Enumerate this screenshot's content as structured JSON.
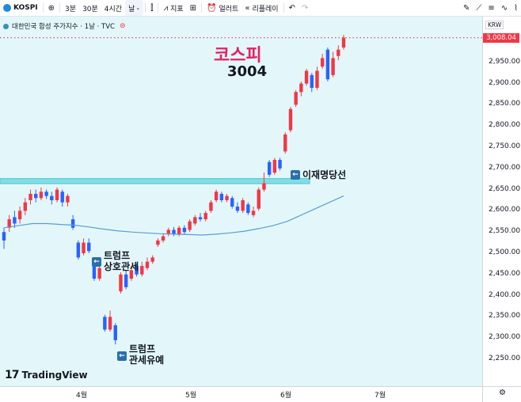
{
  "toolbar": {
    "symbol": "KOSPI",
    "intervals": [
      "3분",
      "30분",
      "4시간",
      "날"
    ],
    "active_interval": "날",
    "indicators_label": "지표",
    "alert_label": "얼러트",
    "replay_label": "리플레이"
  },
  "legend": {
    "name": "대한민국 합성 주가지수 · 1날 · TVC"
  },
  "price_axis": {
    "currency": "KRW",
    "current_price": "3,008.04",
    "ticks": [
      "2,950.00",
      "2,900.00",
      "2,850.00",
      "2,800.00",
      "2,750.00",
      "2,700.00",
      "2,650.00",
      "2,600.00",
      "2,550.00",
      "2,500.00",
      "2,450.00",
      "2,400.00",
      "2,350.00",
      "2,300.00",
      "2,250.00"
    ]
  },
  "time_axis": {
    "ticks": [
      "4월",
      "5월",
      "6월",
      "7월"
    ]
  },
  "branding": "TradingView",
  "annotations": {
    "title": "코스피",
    "value": "3004",
    "election": "이재명당선",
    "tariff_lines": [
      "트럼프",
      "상호관세"
    ],
    "pause_lines": [
      "트럼프",
      "관세유예"
    ]
  },
  "colors": {
    "up": "#f23645",
    "down": "#2962ff",
    "ma": "#5b9bd5",
    "band": "#7fdfe6",
    "background": "#e3f7fb"
  },
  "chart_data": {
    "type": "candlestick",
    "title": "코스피",
    "y_range": [
      2230,
      3040
    ],
    "resistance_level": 2670,
    "x_labels": [
      "4월",
      "5월",
      "6월",
      "7월"
    ],
    "candles": [
      {
        "o": 2550,
        "c": 2530,
        "h": 2560,
        "l": 2510
      },
      {
        "o": 2560,
        "c": 2580,
        "h": 2590,
        "l": 2550
      },
      {
        "o": 2585,
        "c": 2570,
        "h": 2600,
        "l": 2560
      },
      {
        "o": 2580,
        "c": 2600,
        "h": 2610,
        "l": 2570
      },
      {
        "o": 2600,
        "c": 2620,
        "h": 2630,
        "l": 2590
      },
      {
        "o": 2625,
        "c": 2640,
        "h": 2650,
        "l": 2615
      },
      {
        "o": 2640,
        "c": 2630,
        "h": 2650,
        "l": 2620
      },
      {
        "o": 2630,
        "c": 2645,
        "h": 2655,
        "l": 2625
      },
      {
        "o": 2645,
        "c": 2635,
        "h": 2650,
        "l": 2628
      },
      {
        "o": 2635,
        "c": 2625,
        "h": 2645,
        "l": 2615
      },
      {
        "o": 2625,
        "c": 2650,
        "h": 2655,
        "l": 2620
      },
      {
        "o": 2645,
        "c": 2620,
        "h": 2650,
        "l": 2610
      },
      {
        "o": 2620,
        "c": 2635,
        "h": 2640,
        "l": 2610
      },
      {
        "o": 2580,
        "c": 2560,
        "h": 2590,
        "l": 2555
      },
      {
        "o": 2525,
        "c": 2490,
        "h": 2530,
        "l": 2485
      },
      {
        "o": 2500,
        "c": 2525,
        "h": 2535,
        "l": 2495
      },
      {
        "o": 2525,
        "c": 2505,
        "h": 2535,
        "l": 2500
      },
      {
        "o": 2480,
        "c": 2440,
        "h": 2485,
        "l": 2435
      },
      {
        "o": 2440,
        "c": 2465,
        "h": 2475,
        "l": 2435
      },
      {
        "o": 2350,
        "c": 2320,
        "h": 2355,
        "l": 2315
      },
      {
        "o": 2320,
        "c": 2350,
        "h": 2365,
        "l": 2315
      },
      {
        "o": 2330,
        "c": 2295,
        "h": 2335,
        "l": 2285
      },
      {
        "o": 2410,
        "c": 2450,
        "h": 2455,
        "l": 2405
      },
      {
        "o": 2450,
        "c": 2420,
        "h": 2460,
        "l": 2415
      },
      {
        "o": 2440,
        "c": 2460,
        "h": 2470,
        "l": 2435
      },
      {
        "o": 2470,
        "c": 2450,
        "h": 2475,
        "l": 2445
      },
      {
        "o": 2450,
        "c": 2470,
        "h": 2480,
        "l": 2445
      },
      {
        "o": 2465,
        "c": 2480,
        "h": 2490,
        "l": 2460
      },
      {
        "o": 2480,
        "c": 2490,
        "h": 2495,
        "l": 2475
      },
      {
        "o": 2520,
        "c": 2530,
        "h": 2535,
        "l": 2515
      },
      {
        "o": 2530,
        "c": 2540,
        "h": 2545,
        "l": 2525
      },
      {
        "o": 2545,
        "c": 2555,
        "h": 2560,
        "l": 2540
      },
      {
        "o": 2555,
        "c": 2545,
        "h": 2562,
        "l": 2540
      },
      {
        "o": 2545,
        "c": 2560,
        "h": 2565,
        "l": 2540
      },
      {
        "o": 2560,
        "c": 2550,
        "h": 2566,
        "l": 2545
      },
      {
        "o": 2555,
        "c": 2575,
        "h": 2580,
        "l": 2550
      },
      {
        "o": 2570,
        "c": 2585,
        "h": 2590,
        "l": 2565
      },
      {
        "o": 2585,
        "c": 2580,
        "h": 2595,
        "l": 2575
      },
      {
        "o": 2580,
        "c": 2595,
        "h": 2600,
        "l": 2575
      },
      {
        "o": 2600,
        "c": 2620,
        "h": 2625,
        "l": 2595
      },
      {
        "o": 2625,
        "c": 2645,
        "h": 2650,
        "l": 2620
      },
      {
        "o": 2640,
        "c": 2625,
        "h": 2645,
        "l": 2620
      },
      {
        "o": 2625,
        "c": 2635,
        "h": 2640,
        "l": 2620
      },
      {
        "o": 2630,
        "c": 2610,
        "h": 2635,
        "l": 2605
      },
      {
        "o": 2610,
        "c": 2600,
        "h": 2620,
        "l": 2595
      },
      {
        "o": 2600,
        "c": 2625,
        "h": 2630,
        "l": 2595
      },
      {
        "o": 2615,
        "c": 2595,
        "h": 2620,
        "l": 2590
      },
      {
        "o": 2590,
        "c": 2600,
        "h": 2610,
        "l": 2585
      },
      {
        "o": 2605,
        "c": 2650,
        "h": 2655,
        "l": 2600
      },
      {
        "o": 2650,
        "c": 2665,
        "h": 2690,
        "l": 2645
      },
      {
        "o": 2715,
        "c": 2685,
        "h": 2720,
        "l": 2680
      },
      {
        "o": 2690,
        "c": 2720,
        "h": 2725,
        "l": 2685
      },
      {
        "o": 2720,
        "c": 2700,
        "h": 2725,
        "l": 2695
      },
      {
        "o": 2740,
        "c": 2780,
        "h": 2785,
        "l": 2735
      },
      {
        "o": 2790,
        "c": 2840,
        "h": 2845,
        "l": 2785
      },
      {
        "o": 2850,
        "c": 2880,
        "h": 2885,
        "l": 2845
      },
      {
        "o": 2880,
        "c": 2900,
        "h": 2905,
        "l": 2870
      },
      {
        "o": 2900,
        "c": 2930,
        "h": 2935,
        "l": 2895
      },
      {
        "o": 2920,
        "c": 2890,
        "h": 2925,
        "l": 2880
      },
      {
        "o": 2890,
        "c": 2930,
        "h": 2940,
        "l": 2885
      },
      {
        "o": 2940,
        "c": 2960,
        "h": 2970,
        "l": 2935
      },
      {
        "o": 2980,
        "c": 2910,
        "h": 2985,
        "l": 2905
      },
      {
        "o": 2920,
        "c": 2960,
        "h": 2975,
        "l": 2915
      },
      {
        "o": 2965,
        "c": 2980,
        "h": 2990,
        "l": 2955
      },
      {
        "o": 2985,
        "c": 3008,
        "h": 3015,
        "l": 2980
      }
    ],
    "moving_average": [
      2560,
      2565,
      2570,
      2570,
      2568,
      2566,
      2562,
      2557,
      2553,
      2550,
      2548,
      2546,
      2545,
      2544,
      2543,
      2545,
      2548,
      2552,
      2558,
      2565,
      2575,
      2590,
      2605,
      2620,
      2635
    ]
  }
}
